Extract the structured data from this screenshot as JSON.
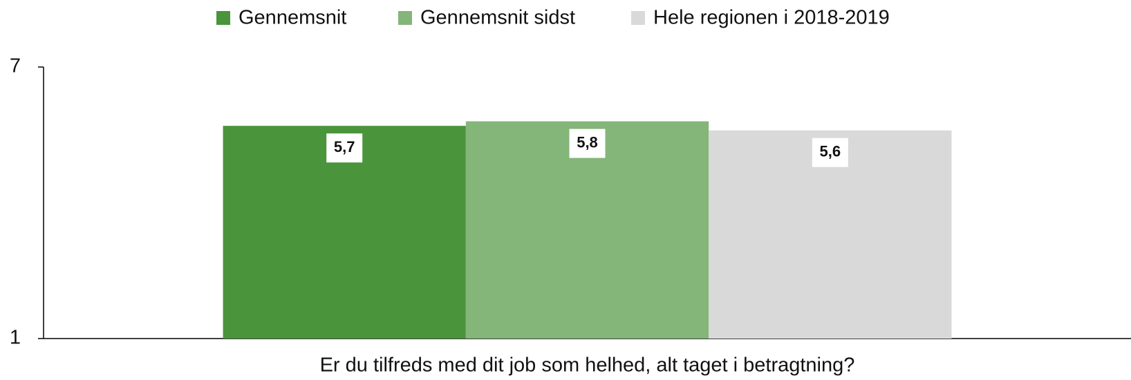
{
  "chart_data": {
    "type": "bar",
    "categories": [
      "Er du tilfreds med dit job som helhed, alt taget i betragtning?"
    ],
    "series": [
      {
        "name": "Gennemsnit",
        "color": "#4a943c",
        "values": [
          5.7
        ],
        "value_labels": [
          "5,7"
        ]
      },
      {
        "name": "Gennemsnit sidst",
        "color": "#84b579",
        "values": [
          5.8
        ],
        "value_labels": [
          "5,8"
        ]
      },
      {
        "name": "Hele regionen i 2018-2019",
        "color": "#d9d9d9",
        "values": [
          5.6
        ],
        "value_labels": [
          "5,6"
        ]
      }
    ],
    "ylim": [
      1,
      7
    ],
    "yticks": [
      1,
      7
    ],
    "grid": false,
    "legend": "top"
  }
}
